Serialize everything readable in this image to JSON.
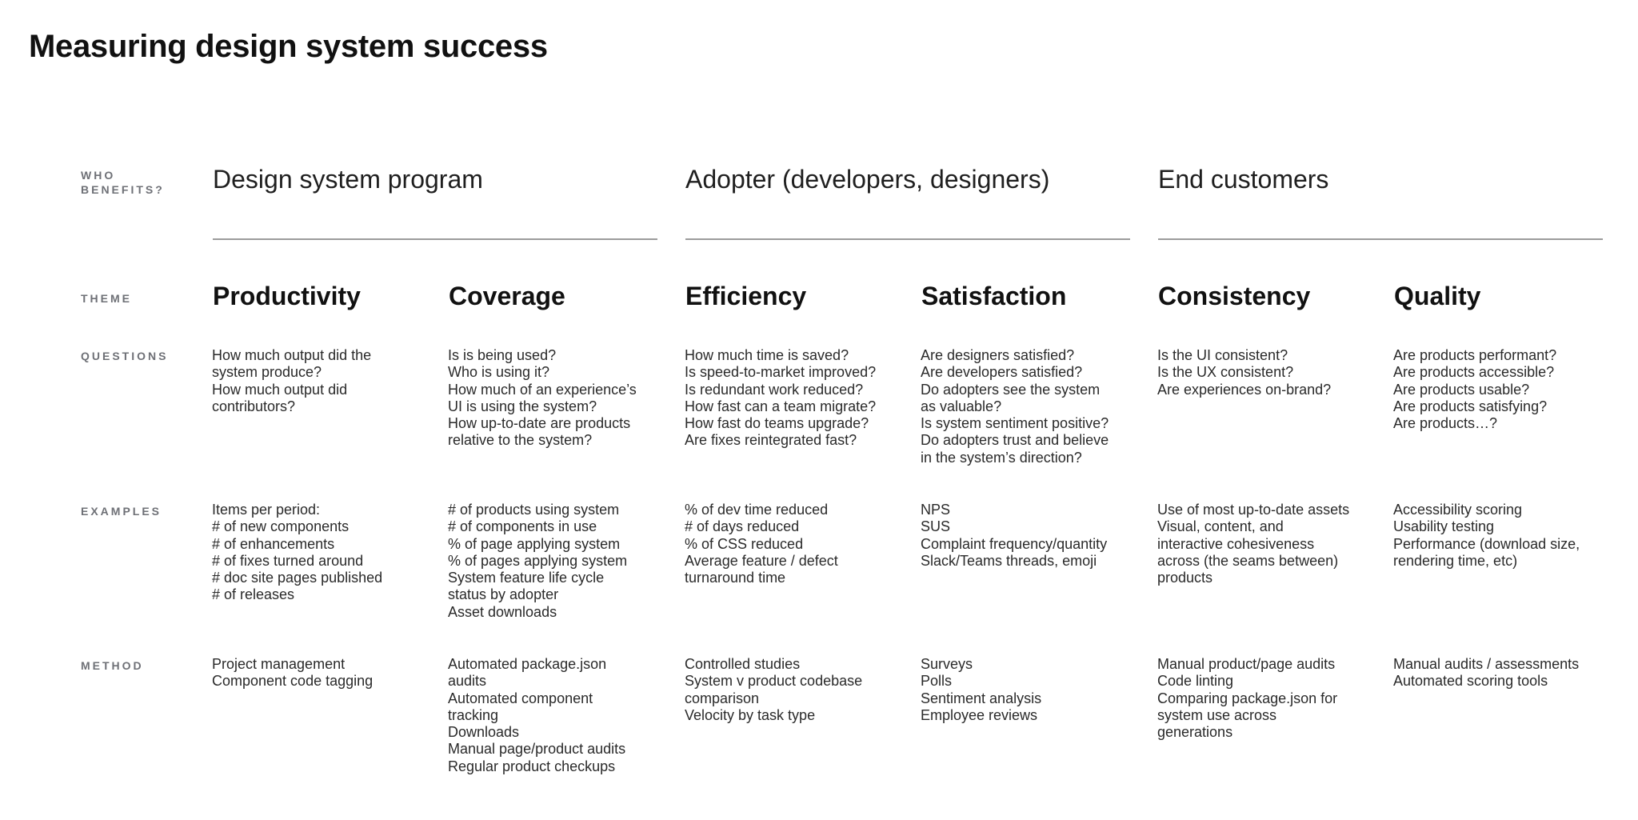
{
  "title": "Measuring design system success",
  "row_labels": {
    "who_benefits": [
      "WHO",
      "BENEFITS?"
    ],
    "theme": "THEME",
    "questions": "QUESTIONS",
    "examples": "EXAMPLES",
    "method": "METHOD"
  },
  "groups": [
    {
      "title": "Design system program"
    },
    {
      "title": "Adopter (developers, designers)"
    },
    {
      "title": "End customers"
    }
  ],
  "themes": [
    {
      "name": "Productivity",
      "questions": [
        "How much output did the",
        "system produce?",
        "How much output did",
        "contributors?"
      ],
      "examples": [
        "Items per period:",
        "# of new components",
        "# of enhancements",
        "# of fixes turned around",
        "# doc site pages published",
        "# of releases"
      ],
      "method": [
        "Project management",
        "Component code tagging"
      ]
    },
    {
      "name": "Coverage",
      "questions": [
        "Is is being used?",
        "Who is using it?",
        "How much of an experience’s",
        "UI is using the system?",
        "How up-to-date are products",
        "relative to the system?"
      ],
      "examples": [
        "# of products using system",
        "# of components in use",
        "% of page applying system",
        "% of pages applying system",
        "System feature life cycle",
        "status by adopter",
        "Asset downloads"
      ],
      "method": [
        "Automated package.json",
        "audits",
        "Automated component",
        "tracking",
        "Downloads",
        "Manual page/product audits",
        "Regular product checkups"
      ]
    },
    {
      "name": "Efficiency",
      "questions": [
        "How much time is saved?",
        "Is speed-to-market improved?",
        "Is redundant work reduced?",
        "How fast can a team migrate?",
        "How fast do teams upgrade?",
        "Are fixes reintegrated fast?"
      ],
      "examples": [
        "% of dev time reduced",
        "# of days reduced",
        "% of CSS reduced",
        "Average feature / defect",
        "turnaround time"
      ],
      "method": [
        "Controlled studies",
        "System v product codebase",
        "comparison",
        "Velocity by task type"
      ]
    },
    {
      "name": "Satisfaction",
      "questions": [
        "Are designers satisfied?",
        "Are developers satisfied?",
        "Do adopters see the system",
        "as valuable?",
        "Is system sentiment positive?",
        "Do adopters trust and believe",
        "in the system’s direction?"
      ],
      "examples": [
        "NPS",
        "SUS",
        "Complaint frequency/quantity",
        "Slack/Teams threads, emoji"
      ],
      "method": [
        "Surveys",
        "Polls",
        "Sentiment analysis",
        "Employee reviews"
      ]
    },
    {
      "name": "Consistency",
      "questions": [
        "Is the UI consistent?",
        "Is the UX consistent?",
        "Are experiences on-brand?"
      ],
      "examples": [
        "Use of most up-to-date assets",
        "Visual, content, and",
        "interactive cohesiveness",
        "across (the seams between)",
        "products"
      ],
      "method": [
        "Manual product/page audits",
        "Code linting",
        "Comparing package.json for",
        "system use across",
        "generations"
      ]
    },
    {
      "name": "Quality",
      "questions": [
        "Are products performant?",
        "Are products accessible?",
        "Are products usable?",
        "Are products satisfying?",
        "Are products…?"
      ],
      "examples": [
        "Accessibility scoring",
        "Usability testing",
        "Performance (download size,",
        "rendering time, etc)"
      ],
      "method": [
        "Manual audits / assessments",
        "Automated scoring tools"
      ]
    }
  ]
}
